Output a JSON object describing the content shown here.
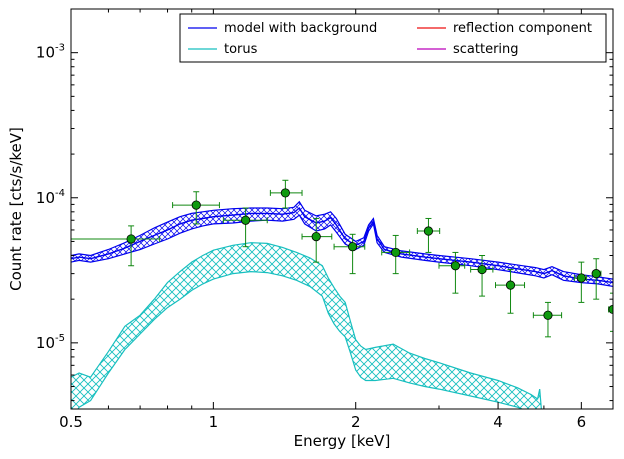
{
  "chart_data": {
    "type": "line",
    "xlabel": "Energy [keV]",
    "ylabel": "Count rate [cts/s/keV]",
    "xscale": "log",
    "yscale": "log",
    "xlim": [
      0.5,
      7.0
    ],
    "ylim": [
      3.5e-06,
      0.002
    ],
    "x_ticks": [
      {
        "value": 0.5,
        "label": "0.5"
      },
      {
        "value": 1,
        "label": "1"
      },
      {
        "value": 2,
        "label": "2"
      },
      {
        "value": 4,
        "label": "4"
      },
      {
        "value": 6,
        "label": "6"
      }
    ],
    "y_ticks": [
      {
        "value": 1e-05,
        "base": "10",
        "exp": "-5"
      },
      {
        "value": 0.0001,
        "base": "10",
        "exp": "-4"
      },
      {
        "value": 0.001,
        "base": "10",
        "exp": "-3"
      }
    ],
    "legend": {
      "position": "top-right",
      "columns": 2,
      "entries": [
        {
          "label": "model with background",
          "color": "#0000ee"
        },
        {
          "label": "reflection component",
          "color": "#ee1111"
        },
        {
          "label": "torus",
          "color": "#17bfbf"
        },
        {
          "label": "scattering",
          "color": "#bb00bb"
        }
      ]
    },
    "series": [
      {
        "name": "model with background",
        "color": "#0000ee",
        "style": "band",
        "x": [
          0.5,
          0.52,
          0.55,
          0.6,
          0.65,
          0.7,
          0.75,
          0.8,
          0.85,
          0.9,
          0.95,
          1.0,
          1.1,
          1.2,
          1.3,
          1.4,
          1.48,
          1.52,
          1.56,
          1.65,
          1.72,
          1.77,
          1.82,
          1.9,
          2.0,
          2.08,
          2.13,
          2.18,
          2.22,
          2.3,
          2.5,
          2.8,
          3.0,
          3.5,
          4.0,
          4.5,
          4.8,
          5.0,
          5.2,
          5.5,
          6.0,
          6.5,
          7.0
        ],
        "y_mid": [
          3.8e-05,
          3.9e-05,
          3.8e-05,
          4.1e-05,
          4.5e-05,
          5e-05,
          5.5e-05,
          6e-05,
          6.6e-05,
          7e-05,
          7.2e-05,
          7.4e-05,
          7.6e-05,
          7.8e-05,
          7.8e-05,
          7.7e-05,
          7.9e-05,
          8.5e-05,
          7.4e-05,
          6.7e-05,
          6.9e-05,
          7.3e-05,
          6.5e-05,
          5.2e-05,
          4.7e-05,
          5e-05,
          6.2e-05,
          6.8e-05,
          5.2e-05,
          4.4e-05,
          4.1e-05,
          3.9e-05,
          3.8e-05,
          3.6e-05,
          3.4e-05,
          3.2e-05,
          3.1e-05,
          3e-05,
          3.15e-05,
          2.9e-05,
          2.75e-05,
          2.7e-05,
          2.6e-05
        ],
        "y_low": [
          3.6e-05,
          3.7e-05,
          3.6e-05,
          3.8e-05,
          4.1e-05,
          4.4e-05,
          4.8e-05,
          5.2e-05,
          5.7e-05,
          6.1e-05,
          6.4e-05,
          6.6e-05,
          6.7e-05,
          6.9e-05,
          7e-05,
          6.9e-05,
          7.1e-05,
          7.6e-05,
          6.6e-05,
          5.9e-05,
          6.1e-05,
          6.5e-05,
          5.8e-05,
          4.8e-05,
          4.4e-05,
          4.7e-05,
          5.9e-05,
          6.6e-05,
          4.9e-05,
          4.2e-05,
          3.9e-05,
          3.7e-05,
          3.6e-05,
          3.4e-05,
          3.2e-05,
          3e-05,
          2.9e-05,
          2.8e-05,
          2.95e-05,
          2.7e-05,
          2.6e-05,
          2.55e-05,
          2.45e-05
        ],
        "y_high": [
          4e-05,
          4.1e-05,
          4e-05,
          4.4e-05,
          4.9e-05,
          5.5e-05,
          6.2e-05,
          6.8e-05,
          7.4e-05,
          7.8e-05,
          8e-05,
          8.2e-05,
          8.4e-05,
          8.5e-05,
          8.5e-05,
          8.4e-05,
          8.6e-05,
          9.4e-05,
          8.2e-05,
          7.5e-05,
          7.7e-05,
          8e-05,
          7.2e-05,
          5.6e-05,
          5e-05,
          5.3e-05,
          6.5e-05,
          7.2e-05,
          5.5e-05,
          4.6e-05,
          4.3e-05,
          4.1e-05,
          4e-05,
          3.8e-05,
          3.6e-05,
          3.4e-05,
          3.3e-05,
          3.2e-05,
          3.35e-05,
          3.1e-05,
          2.95e-05,
          2.85e-05,
          2.75e-05
        ]
      },
      {
        "name": "torus",
        "color": "#17bfbf",
        "style": "band",
        "x": [
          0.5,
          0.52,
          0.55,
          0.6,
          0.65,
          0.7,
          0.75,
          0.8,
          0.85,
          0.9,
          0.95,
          1.0,
          1.1,
          1.2,
          1.3,
          1.4,
          1.5,
          1.6,
          1.7,
          1.75,
          1.8,
          1.85,
          1.9,
          1.95,
          2.0,
          2.05,
          2.1,
          2.2,
          2.4,
          2.6,
          2.8,
          3.0,
          3.5,
          4.0,
          4.4,
          4.7,
          4.85,
          4.9,
          4.95
        ],
        "y_low": [
          2.9e-06,
          3.6e-06,
          4e-06,
          6.2e-06,
          9e-06,
          1.15e-05,
          1.45e-05,
          1.75e-05,
          2e-05,
          2.3e-05,
          2.55e-05,
          2.75e-05,
          3e-05,
          3.1e-05,
          3.05e-05,
          2.9e-05,
          2.7e-05,
          2.45e-05,
          2.1e-05,
          1.6e-05,
          1.35e-05,
          1.2e-05,
          1.1e-05,
          8.5e-06,
          6.5e-06,
          5.8e-06,
          5.5e-06,
          5.5e-06,
          5.7e-06,
          5.3e-06,
          5e-06,
          4.8e-06,
          4.3e-06,
          3.9e-06,
          3.6e-06,
          3.3e-06,
          3.1e-06,
          3.2e-06,
          2.9e-06
        ],
        "y_high": [
          5.8e-06,
          6.2e-06,
          5.8e-06,
          8.7e-06,
          1.3e-05,
          1.55e-05,
          2e-05,
          2.6e-05,
          3.1e-05,
          3.6e-05,
          4e-05,
          4.35e-05,
          4.7e-05,
          4.9e-05,
          4.85e-05,
          4.55e-05,
          4.2e-05,
          3.85e-05,
          3.4e-05,
          2.8e-05,
          2.4e-05,
          2.1e-05,
          1.9e-05,
          1.4e-05,
          1.05e-05,
          9.5e-06,
          9e-06,
          9.3e-06,
          9.8e-06,
          8.5e-06,
          7.8e-06,
          7.3e-06,
          6.2e-06,
          5.5e-06,
          4.9e-06,
          4.4e-06,
          4.1e-06,
          4.8e-06,
          3.2e-06
        ]
      }
    ],
    "data_points": {
      "color": "#118811",
      "marker_color": "#0e9a0e",
      "points": [
        {
          "x": 0.67,
          "y": 5.2e-05,
          "xerr": [
            0.17,
            0.1
          ],
          "yerr": [
            3.4e-05,
            6.4e-05
          ]
        },
        {
          "x": 0.92,
          "y": 8.9e-05,
          "xerr": [
            0.1,
            0.11
          ],
          "yerr": [
            6.6e-05,
            0.00011
          ]
        },
        {
          "x": 1.17,
          "y": 7e-05,
          "xerr": [
            0.12,
            0.13
          ],
          "yerr": [
            4.6e-05,
            8.5e-05
          ]
        },
        {
          "x": 1.42,
          "y": 0.000108,
          "xerr": [
            0.1,
            0.12
          ],
          "yerr": [
            8.5e-05,
            0.000132
          ]
        },
        {
          "x": 1.65,
          "y": 5.4e-05,
          "xerr": [
            0.11,
            0.13
          ],
          "yerr": [
            3.6e-05,
            7.2e-05
          ]
        },
        {
          "x": 1.97,
          "y": 4.6e-05,
          "xerr": [
            0.17,
            0.12
          ],
          "yerr": [
            3e-05,
            5.6e-05
          ]
        },
        {
          "x": 2.43,
          "y": 4.2e-05,
          "xerr": [
            0.16,
            0.17
          ],
          "yerr": [
            3e-05,
            5.5e-05
          ]
        },
        {
          "x": 2.85,
          "y": 5.9e-05,
          "xerr": [
            0.15,
            0.16
          ],
          "yerr": [
            4.2e-05,
            7.2e-05
          ]
        },
        {
          "x": 3.25,
          "y": 3.4e-05,
          "xerr": [
            0.25,
            0.15
          ],
          "yerr": [
            2.2e-05,
            4.2e-05
          ]
        },
        {
          "x": 3.7,
          "y": 3.2e-05,
          "xerr": [
            0.2,
            0.2
          ],
          "yerr": [
            2.1e-05,
            4e-05
          ]
        },
        {
          "x": 4.25,
          "y": 2.5e-05,
          "xerr": [
            0.3,
            0.3
          ],
          "yerr": [
            1.6e-05,
            3.2e-05
          ]
        },
        {
          "x": 5.1,
          "y": 1.55e-05,
          "xerr": [
            0.35,
            0.35
          ],
          "yerr": [
            1.1e-05,
            1.9e-05
          ]
        },
        {
          "x": 6.0,
          "y": 2.8e-05,
          "xerr": [
            0.2,
            0.15
          ],
          "yerr": [
            1.9e-05,
            3.6e-05
          ]
        },
        {
          "x": 6.45,
          "y": 3e-05,
          "xerr": [
            0.1,
            0.15
          ],
          "yerr": [
            2e-05,
            3.8e-05
          ]
        },
        {
          "x": 7.0,
          "y": 1.7e-05,
          "xerr": [
            0.15,
            0.0
          ],
          "yerr": [
            1.2e-05,
            2.2e-05
          ]
        }
      ]
    }
  }
}
